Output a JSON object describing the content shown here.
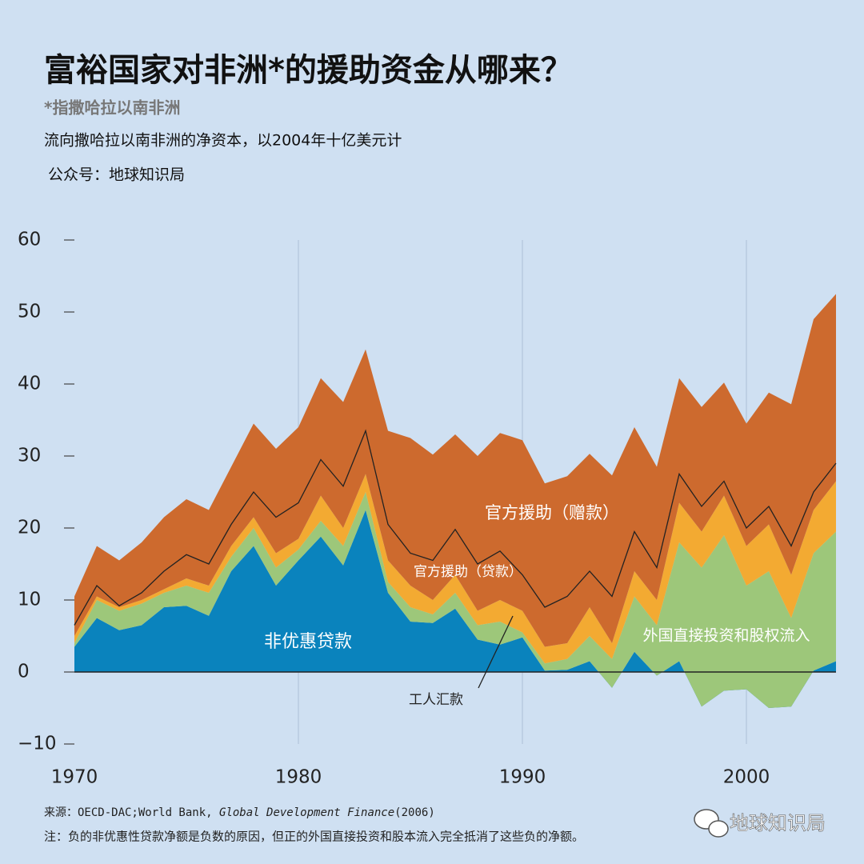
{
  "chart_data": {
    "type": "stacked_area",
    "title": "富裕国家对非洲*的援助资金从哪来？",
    "subtitle": "*指撒哈拉以南非洲",
    "description": "流向撒哈拉以南非洲的净资本，以2004年十亿美元计",
    "credit": "公众号：地球知识局",
    "source": {
      "prefix": "来源：OECD-DAC;World Bank, ",
      "italic": "Global Development Finance",
      "suffix": "(2006)"
    },
    "note": "注：负的非优惠性贷款净额是负数的原因，但正的外国直接投资和股本流入完全抵消了这些负的净额。",
    "watermark": "地球知识局",
    "x": [
      1970,
      1971,
      1972,
      1973,
      1974,
      1975,
      1976,
      1977,
      1978,
      1979,
      1980,
      1981,
      1982,
      1983,
      1984,
      1985,
      1986,
      1987,
      1988,
      1989,
      1990,
      1991,
      1992,
      1993,
      1994,
      1995,
      1996,
      1997,
      1998,
      1999,
      2000,
      2001,
      2002,
      2003,
      2004
    ],
    "xlim": [
      1970,
      2004
    ],
    "xticks": [
      1970,
      1980,
      1990,
      2000
    ],
    "ylim": [
      -10,
      60
    ],
    "yticks": [
      {
        "value": -10,
        "label": "−10"
      },
      0,
      10,
      20,
      30,
      40,
      50,
      60
    ],
    "grid": true,
    "series": [
      {
        "name": "非优惠贷款",
        "color": "#0a83bd",
        "label_color": "#ffffff",
        "values": [
          3.5,
          7.5,
          5.8,
          6.5,
          9,
          9.2,
          7.8,
          14,
          17.5,
          12,
          15.5,
          18.8,
          14.8,
          22.5,
          11,
          7,
          6.8,
          8.8,
          4.5,
          3.8,
          4.8,
          0.2,
          0.3,
          1.5,
          -2.2,
          2.8,
          -0.5,
          1.5,
          -4.8,
          -2.6,
          -2.4,
          -5,
          -4.8,
          0.2,
          1.5
        ]
      },
      {
        "name": "外国直接投资和股权流入",
        "color": "#9dc77a",
        "label_color": "#ffffff",
        "values": [
          0.5,
          2.5,
          2.7,
          3,
          2,
          2.8,
          3.2,
          2,
          2.5,
          2.5,
          1.5,
          2.2,
          2.7,
          2.5,
          1.5,
          2,
          1.2,
          2.2,
          2,
          3.2,
          0.7,
          1,
          1.5,
          3.5,
          4,
          7.7,
          7,
          16.5,
          19.3,
          21.6,
          14.4,
          19,
          12.3,
          16.3,
          18
        ]
      },
      {
        "name": "官方援助（贷款）",
        "color": "#f3aa32",
        "label_color": "#ffffff",
        "values": [
          1,
          0.5,
          0.5,
          0.5,
          0.5,
          1,
          1,
          1.5,
          1.5,
          2,
          1.5,
          3.5,
          2.5,
          2.5,
          3,
          3,
          2,
          2.5,
          2,
          3,
          3,
          2.3,
          2.2,
          4,
          2.2,
          3.5,
          3.5,
          5.5,
          5,
          5.5,
          5.5,
          6.5,
          6,
          6,
          7
        ]
      },
      {
        "name": "工人汇款",
        "color": "#cd6a2e",
        "label_color": "#222222",
        "line": true,
        "values": [
          1.5,
          1.5,
          0.2,
          1,
          2.5,
          3.3,
          3,
          3,
          3.5,
          5,
          5,
          5,
          5.8,
          6,
          5,
          4.5,
          5.5,
          6.3,
          6.5,
          6.8,
          5,
          5.5,
          6.5,
          5,
          6.5,
          5.5,
          4.5,
          4,
          3.5,
          2,
          2.5,
          2.5,
          4,
          2.5,
          2.5
        ]
      },
      {
        "name": "官方援助（赠款）",
        "color": "#cd6a2e",
        "label_color": "#ffffff",
        "values": [
          4,
          5.5,
          6.3,
          7,
          7.5,
          7.7,
          7.5,
          8,
          9.5,
          9.5,
          10.5,
          11.3,
          11.7,
          11.3,
          13,
          16,
          14.7,
          13.2,
          15,
          16.4,
          18.7,
          17.2,
          16.7,
          16.3,
          16.8,
          14.5,
          14,
          13.3,
          13.8,
          13.7,
          14.5,
          15.8,
          19.7,
          24,
          23.5
        ]
      }
    ]
  }
}
